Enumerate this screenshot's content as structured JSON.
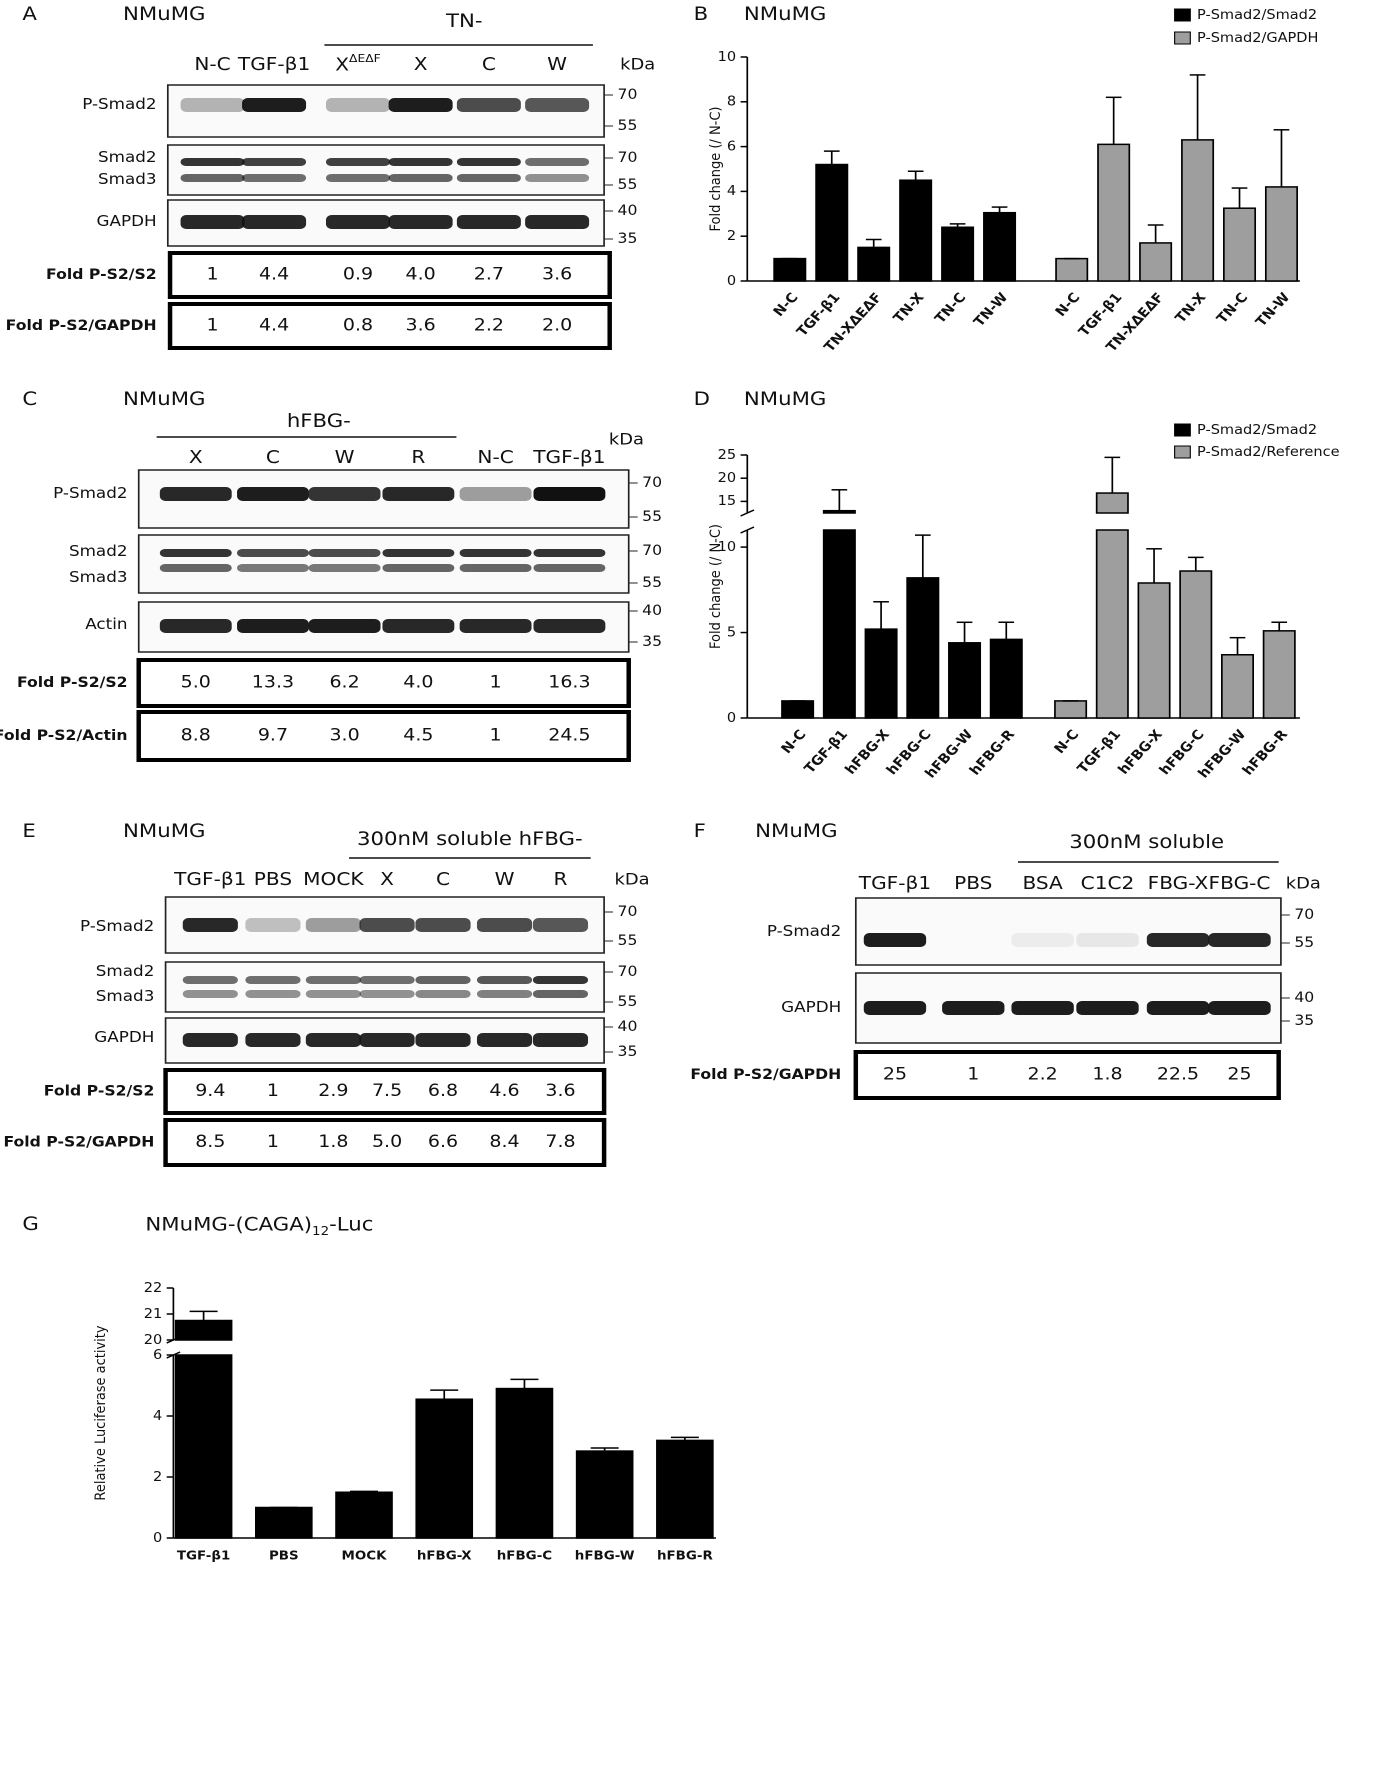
{
  "panels": [
    {
      "letter": "A",
      "cell_line": "NMuMG",
      "group_label": "TN-",
      "lanes": [
        "N-C",
        "TGF-β1",
        {
          "text": "X",
          "sup": "ΔEΔF"
        },
        "X",
        "C",
        "W"
      ],
      "kda_label": "kDa",
      "rows": [
        {
          "labels": [
            "P-Smad2"
          ],
          "markers": [
            70,
            55
          ]
        },
        {
          "labels": [
            "Smad2",
            "Smad3"
          ],
          "markers": [
            70,
            55
          ]
        },
        {
          "labels": [
            "GAPDH"
          ],
          "markers": [
            40,
            35
          ]
        }
      ],
      "quantification": [
        {
          "label": "Fold P-S2/S2",
          "values": [
            "1",
            "4.4",
            "0.9",
            "4.0",
            "2.7",
            "3.6"
          ]
        },
        {
          "label": "Fold P-S2/GAPDH",
          "values": [
            "1",
            "4.4",
            "0.8",
            "3.6",
            "2.2",
            "2.0"
          ]
        }
      ]
    },
    {
      "letter": "C",
      "cell_line": "NMuMG",
      "group_label": "hFBG-",
      "lanes": [
        "X",
        "C",
        "W",
        "R",
        "N-C",
        "TGF-β1"
      ],
      "kda_label": "kDa",
      "rows": [
        {
          "labels": [
            "P-Smad2"
          ],
          "markers": [
            70,
            55
          ]
        },
        {
          "labels": [
            "Smad2",
            "Smad3"
          ],
          "markers": [
            70,
            55
          ]
        },
        {
          "labels": [
            "Actin"
          ],
          "markers": [
            40,
            35
          ]
        }
      ],
      "quantification": [
        {
          "label": "Fold P-S2/S2",
          "values": [
            "5.0",
            "13.3",
            "6.2",
            "4.0",
            "1",
            "16.3"
          ]
        },
        {
          "label": "Fold P-S2/Actin",
          "values": [
            "8.8",
            "9.7",
            "3.0",
            "4.5",
            "1",
            "24.5"
          ]
        }
      ]
    },
    {
      "letter": "E",
      "cell_line": "NMuMG",
      "group_label": "300nM soluble hFBG-",
      "lanes": [
        "TGF-β1",
        "PBS",
        "MOCK",
        "X",
        "C",
        "W",
        "R"
      ],
      "kda_label": "kDa",
      "rows": [
        {
          "labels": [
            "P-Smad2"
          ],
          "markers": [
            70,
            55
          ]
        },
        {
          "labels": [
            "Smad2",
            "Smad3"
          ],
          "markers": [
            70,
            55
          ]
        },
        {
          "labels": [
            "GAPDH"
          ],
          "markers": [
            40,
            35
          ]
        }
      ],
      "quantification": [
        {
          "label": "Fold P-S2/S2",
          "values": [
            "9.4",
            "1",
            "2.9",
            "7.5",
            "6.8",
            "4.6",
            "3.6"
          ]
        },
        {
          "label": "Fold P-S2/GAPDH",
          "values": [
            "8.5",
            "1",
            "1.8",
            "5.0",
            "6.6",
            "8.4",
            "7.8"
          ]
        }
      ]
    },
    {
      "letter": "F",
      "cell_line": "NMuMG",
      "group_label": "300nM soluble",
      "lanes": [
        "TGF-β1",
        "PBS",
        "BSA",
        "C1C2",
        "FBG-X",
        "FBG-C"
      ],
      "kda_label": "kDa",
      "rows": [
        {
          "labels": [
            "P-Smad2"
          ],
          "markers": [
            70,
            55
          ]
        },
        {
          "labels": [
            "GAPDH"
          ],
          "markers": [
            40,
            35
          ]
        }
      ],
      "quantification": [
        {
          "label": "Fold P-S2/GAPDH",
          "values": [
            "25",
            "1",
            "2.2",
            "1.8",
            "22.5",
            "25"
          ]
        }
      ]
    }
  ],
  "chart_data": [
    {
      "type": "bar",
      "letter": "B",
      "title": "NMuMG",
      "ylabel": "Fold change (/ N-C)",
      "categories": [
        "N-C",
        "TGF-β1",
        "TN-XΔEΔF",
        "TN-X",
        "TN-C",
        "TN-W"
      ],
      "series": [
        {
          "name": "P-Smad2/Smad2",
          "color": "#000000",
          "values": [
            1,
            5.2,
            1.5,
            4.5,
            2.4,
            3.05
          ],
          "errors": [
            0,
            0.6,
            0.35,
            0.4,
            0.15,
            0.25
          ]
        },
        {
          "name": "P-Smad2/GAPDH",
          "color": "#9e9e9e",
          "values": [
            1,
            6.1,
            1.7,
            6.3,
            3.25,
            4.2
          ],
          "errors": [
            0,
            2.1,
            0.8,
            2.9,
            0.9,
            2.55
          ]
        }
      ],
      "ylim": [
        0,
        10
      ],
      "yticks": [
        0,
        2,
        4,
        6,
        8,
        10
      ],
      "legend": "upper right"
    },
    {
      "type": "bar",
      "letter": "D",
      "title": "NMuMG",
      "ylabel": "Fold change (/ N-C)",
      "categories": [
        "N-C",
        "TGF-β1",
        "hFBG-X",
        "hFBG-C",
        "hFBG-W",
        "hFBG-R"
      ],
      "series": [
        {
          "name": "P-Smad2/Smad2",
          "color": "#000000",
          "values": [
            1,
            13,
            5.2,
            8.2,
            4.4,
            4.6
          ],
          "errors": [
            0,
            4.5,
            1.6,
            2.5,
            1.2,
            1.0
          ]
        },
        {
          "name": "P-Smad2/Reference",
          "color": "#9e9e9e",
          "values": [
            1,
            16.8,
            7.9,
            8.6,
            3.7,
            5.1
          ],
          "errors": [
            0,
            7.7,
            2.0,
            0.8,
            1.0,
            0.5
          ]
        }
      ],
      "ylim": [
        0,
        25
      ],
      "ybreak": [
        11,
        12.5
      ],
      "yticks": [
        0,
        5,
        10,
        15,
        20,
        25
      ],
      "legend": "upper right"
    },
    {
      "type": "bar",
      "letter": "G",
      "title_parts": [
        "NMuMG-(CAGA)",
        "12",
        "-Luc"
      ],
      "ylabel": "Relative Luciferase activity",
      "categories": [
        "TGF-β1",
        "PBS",
        "MOCK",
        "hFBG-X",
        "hFBG-C",
        "hFBG-W",
        "hFBG-R"
      ],
      "series": [
        {
          "color": "#000000",
          "values": [
            20.75,
            1,
            1.5,
            4.55,
            4.9,
            2.85,
            3.2
          ],
          "errors": [
            0.35,
            0,
            0.03,
            0.3,
            0.3,
            0.1,
            0.1
          ]
        }
      ],
      "ylim": [
        0,
        22
      ],
      "ybreak": [
        6,
        20
      ],
      "yticks": [
        0,
        2,
        4,
        6,
        20,
        21,
        22
      ]
    }
  ]
}
